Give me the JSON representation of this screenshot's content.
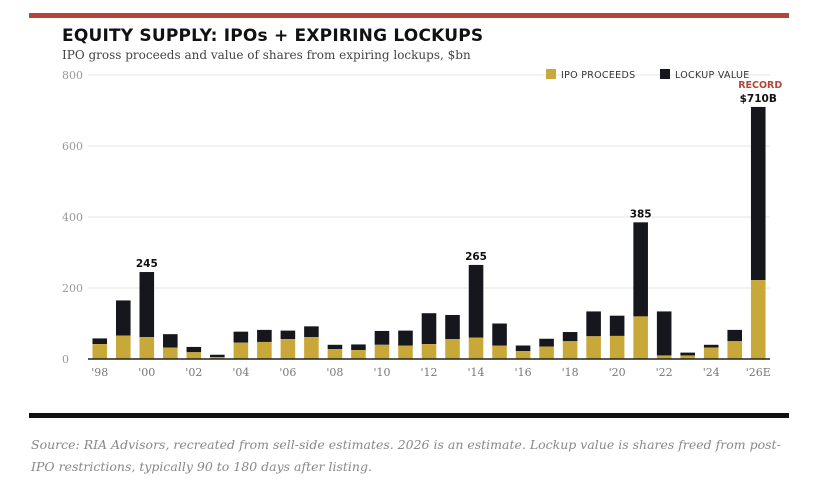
{
  "header": {
    "title": "EQUITY SUPPLY: IPOs + EXPIRING LOCKUPS",
    "subtitle": "IPO gross proceeds and value of shares from expiring lockups, $bn"
  },
  "footnote": "Source: RIA Advisors, recreated from sell-side estimates. 2026 is an estimate. Lockup value is shares freed from post-IPO restrictions, typically 90 to 180 days after listing.",
  "colors": {
    "ipo": "#c9a83a",
    "lockup": "#15171c",
    "record": "#b5453a",
    "grid": "#e6e6e6",
    "axis": "#222222"
  },
  "chart_data": {
    "type": "bar",
    "stacked": true,
    "title": "EQUITY SUPPLY: IPOs + EXPIRING LOCKUPS",
    "subtitle": "IPO gross proceeds and value of shares from expiring lockups, $bn",
    "ylim": [
      0,
      800
    ],
    "yticks": [
      "0",
      "200",
      "400",
      "600",
      "800"
    ],
    "grid": true,
    "legend_position": "top-right",
    "categories": [
      "1998",
      "1999",
      "2000",
      "2001",
      "2002",
      "2003",
      "2004",
      "2005",
      "2006",
      "2007",
      "2008",
      "2009",
      "2010",
      "2011",
      "2012",
      "2013",
      "2014",
      "2015",
      "2016",
      "2017",
      "2018",
      "2019",
      "2020",
      "2021",
      "2022",
      "2023",
      "2024",
      "2025",
      "2026E"
    ],
    "xtick_labels": [
      "'98",
      "",
      "'00",
      "",
      "'02",
      "",
      "'04",
      "",
      "'06",
      "",
      "'08",
      "",
      "'10",
      "",
      "'12",
      "",
      "'14",
      "",
      "'16",
      "",
      "'18",
      "",
      "'20",
      "",
      "'22",
      "",
      "'24",
      "",
      "'26E"
    ],
    "series": [
      {
        "name": "IPO PROCEEDS",
        "values": [
          42,
          66,
          62,
          32,
          19,
          5,
          46,
          48,
          56,
          62,
          28,
          25,
          40,
          38,
          42,
          56,
          60,
          38,
          22,
          35,
          50,
          64,
          65,
          120,
          10,
          10,
          32,
          50,
          222
        ]
      },
      {
        "name": "LOCKUP VALUE",
        "values": [
          16,
          99,
          183,
          38,
          15,
          7,
          31,
          34,
          24,
          30,
          12,
          16,
          39,
          42,
          87,
          68,
          205,
          62,
          16,
          22,
          26,
          70,
          57,
          265,
          124,
          8,
          8,
          32,
          488
        ]
      }
    ],
    "annotations": [
      {
        "category": "2000",
        "text": "245"
      },
      {
        "category": "2014",
        "text": "265"
      },
      {
        "category": "2021",
        "text": "385"
      },
      {
        "category": "2026E",
        "text": "$710B",
        "label": "RECORD"
      }
    ]
  }
}
